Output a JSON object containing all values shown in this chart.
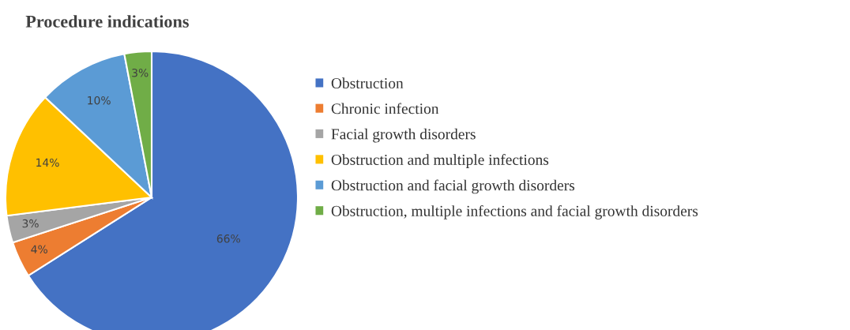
{
  "chart_data": {
    "type": "pie",
    "title": "Procedure indications",
    "categories": [
      "Obstruction",
      "Chronic infection",
      "Facial growth disorders",
      "Obstruction and multiple infections",
      "Obstruction and facial growth disorders",
      "Obstruction, multiple infections and facial growth disorders"
    ],
    "values": [
      66,
      4,
      3,
      14,
      10,
      3
    ],
    "colors": [
      "#4472c4",
      "#ed7d31",
      "#a5a5a5",
      "#ffc000",
      "#5b9bd5",
      "#70ad47"
    ],
    "value_labels": [
      "66%",
      "4%",
      "3%",
      "14%",
      "10%",
      "3%"
    ],
    "legend": "right"
  }
}
